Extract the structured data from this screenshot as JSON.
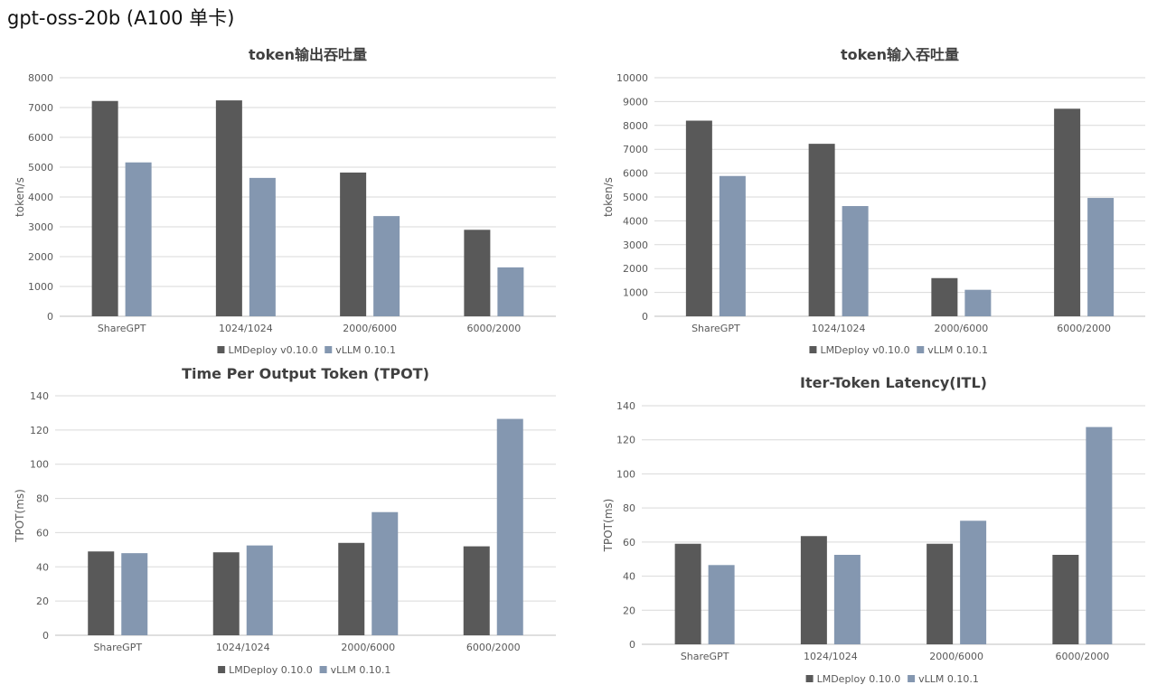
{
  "page": {
    "title": "gpt-oss-20b (A100 单卡)"
  },
  "colors": {
    "lmdeploy": "#595959",
    "vllm": "#8497b0",
    "grid": "#d9d9d9",
    "axis_text": "#595959",
    "title": "#404040"
  },
  "chart_data": [
    {
      "type": "bar",
      "title": "token输出吞吐量",
      "xlabel": "",
      "ylabel": "token/s",
      "categories": [
        "ShareGPT",
        "1024/1024",
        "2000/6000",
        "6000/2000"
      ],
      "ylim": [
        0,
        8000
      ],
      "yticks": [
        0,
        1000,
        2000,
        3000,
        4000,
        5000,
        6000,
        7000,
        8000
      ],
      "grid": true,
      "legend_position": "bottom",
      "series": [
        {
          "name": "LMDeploy v0.10.0",
          "values": [
            7220,
            7240,
            4820,
            2900
          ]
        },
        {
          "name": "vLLM 0.10.1",
          "values": [
            5160,
            4640,
            3360,
            1640
          ]
        }
      ]
    },
    {
      "type": "bar",
      "title": "token输入吞吐量",
      "xlabel": "",
      "ylabel": "token/s",
      "categories": [
        "ShareGPT",
        "1024/1024",
        "2000/6000",
        "6000/2000"
      ],
      "ylim": [
        0,
        10000
      ],
      "yticks": [
        0,
        1000,
        2000,
        3000,
        4000,
        5000,
        6000,
        7000,
        8000,
        9000,
        10000
      ],
      "grid": true,
      "legend_position": "bottom",
      "series": [
        {
          "name": "LMDeploy v0.10.0",
          "values": [
            8200,
            7230,
            1600,
            8700
          ]
        },
        {
          "name": "vLLM 0.10.1",
          "values": [
            5880,
            4620,
            1110,
            4960
          ]
        }
      ]
    },
    {
      "type": "bar",
      "title": "Time Per Output Token (TPOT)",
      "xlabel": "",
      "ylabel": "TPOT(ms)",
      "categories": [
        "ShareGPT",
        "1024/1024",
        "2000/6000",
        "6000/2000"
      ],
      "ylim": [
        0,
        140
      ],
      "yticks": [
        0,
        20,
        40,
        60,
        80,
        100,
        120,
        140
      ],
      "grid": true,
      "legend_position": "bottom",
      "series": [
        {
          "name": "LMDeploy 0.10.0",
          "values": [
            49,
            48.5,
            54,
            52
          ]
        },
        {
          "name": "vLLM 0.10.1",
          "values": [
            48,
            52.5,
            72,
            126.5
          ]
        }
      ]
    },
    {
      "type": "bar",
      "title": "Iter-Token Latency(ITL)",
      "xlabel": "",
      "ylabel": "TPOT(ms)",
      "categories": [
        "ShareGPT",
        "1024/1024",
        "2000/6000",
        "6000/2000"
      ],
      "ylim": [
        0,
        140
      ],
      "yticks": [
        0,
        20,
        40,
        60,
        80,
        100,
        120,
        140
      ],
      "grid": true,
      "legend_position": "bottom",
      "series": [
        {
          "name": "LMDeploy 0.10.0",
          "values": [
            59,
            63.5,
            59,
            52.5
          ]
        },
        {
          "name": "vLLM 0.10.1",
          "values": [
            46.5,
            52.5,
            72.5,
            127.5
          ]
        }
      ]
    }
  ]
}
